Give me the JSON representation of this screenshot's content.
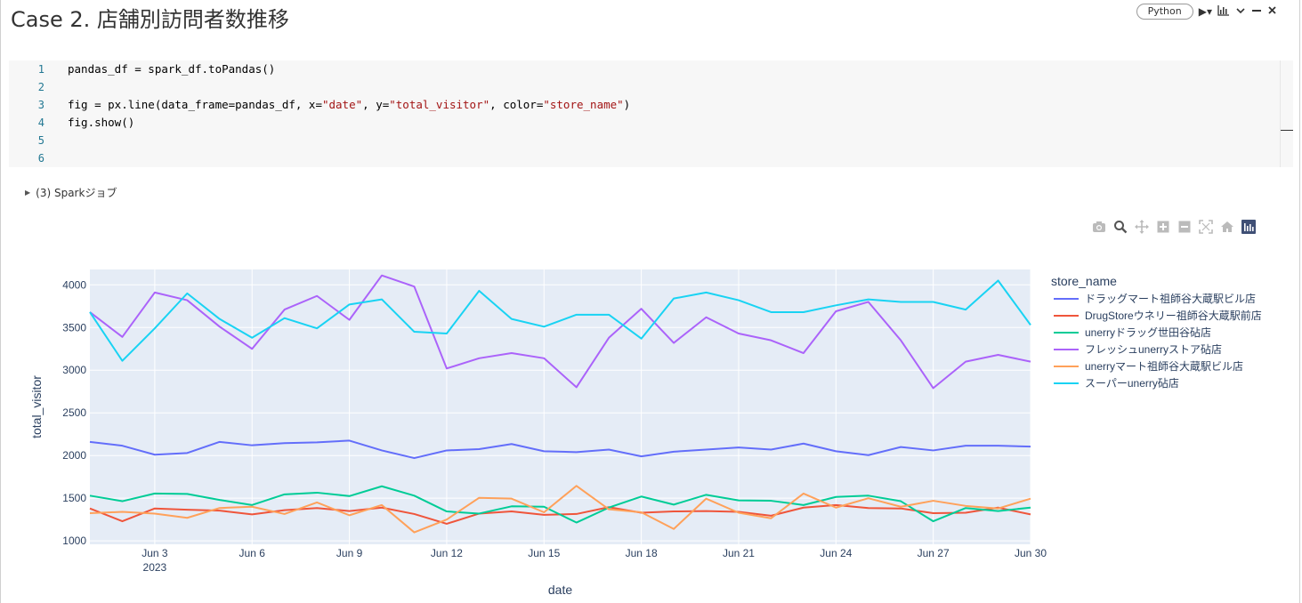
{
  "cell": {
    "title": "Case 2. 店舗別訪問者数推移",
    "language": "Python"
  },
  "code": {
    "line_numbers": [
      "1",
      "2",
      "3",
      "4",
      "5",
      "6"
    ],
    "line1": "pandas_df = spark_df.toPandas()",
    "line3_a": "fig = px.line(data_frame=pandas_df, x=",
    "line3_s1": "\"date\"",
    "line3_b": ", y=",
    "line3_s2": "\"total_visitor\"",
    "line3_c": ", color=",
    "line3_s3": "\"store_name\"",
    "line3_d": ")",
    "line4": "fig.show()"
  },
  "output": {
    "jobs_label": "(3) Sparkジョブ"
  },
  "icons": {
    "camera": "camera-icon",
    "zoom": "zoom-icon",
    "pan": "pan-icon",
    "zoom_in": "zoom-in-icon",
    "zoom_out": "zoom-out-icon",
    "autoscale": "autoscale-icon",
    "reset": "home-icon",
    "plotly": "plotly-logo-icon"
  },
  "chart_data": {
    "type": "line",
    "title": "",
    "xlabel": "date",
    "ylabel": "total_visitor",
    "legend_title": "store_name",
    "ylim": [
      960,
      4180
    ],
    "yticks": [
      1000,
      1500,
      2000,
      2500,
      3000,
      3500,
      4000
    ],
    "ytick_labels": [
      "1000",
      "1500",
      "2000",
      "2500",
      "3000",
      "3500",
      "4000"
    ],
    "x_start_day": 1,
    "x_end_day": 30,
    "xticks": [
      3,
      6,
      9,
      12,
      15,
      18,
      21,
      24,
      27,
      30
    ],
    "xtick_labels": [
      "Jun 3",
      "Jun 6",
      "Jun 9",
      "Jun 12",
      "Jun 15",
      "Jun 18",
      "Jun 21",
      "Jun 24",
      "Jun 27",
      "Jun 30"
    ],
    "x_year_label": "2023",
    "x": [
      1,
      2,
      3,
      4,
      5,
      6,
      7,
      8,
      9,
      10,
      11,
      12,
      13,
      14,
      15,
      16,
      17,
      18,
      19,
      20,
      21,
      22,
      23,
      24,
      25,
      26,
      27,
      28,
      29,
      30
    ],
    "series": [
      {
        "name": "ドラッグマート祖師谷大蔵駅ビル店",
        "color": "#636efa",
        "values": [
          2160,
          2115,
          2010,
          2030,
          2160,
          2120,
          2145,
          2155,
          2175,
          2060,
          1970,
          2060,
          2075,
          2135,
          2050,
          2040,
          2070,
          1990,
          2045,
          2070,
          2095,
          2070,
          2140,
          2050,
          2005,
          2100,
          2060,
          2115,
          2115,
          2105
        ]
      },
      {
        "name": "DrugStoreウネリー祖師谷大蔵駅前店",
        "color": "#ef553b",
        "values": [
          1380,
          1230,
          1380,
          1365,
          1355,
          1310,
          1360,
          1385,
          1350,
          1390,
          1315,
          1200,
          1320,
          1345,
          1305,
          1315,
          1395,
          1330,
          1345,
          1350,
          1340,
          1295,
          1390,
          1420,
          1385,
          1380,
          1325,
          1330,
          1390,
          1310
        ]
      },
      {
        "name": "unerryドラッグ世田谷砧店",
        "color": "#00cc96",
        "values": [
          1530,
          1465,
          1555,
          1550,
          1480,
          1420,
          1545,
          1565,
          1525,
          1640,
          1530,
          1345,
          1320,
          1405,
          1400,
          1215,
          1390,
          1520,
          1425,
          1540,
          1475,
          1470,
          1420,
          1515,
          1530,
          1465,
          1230,
          1385,
          1350,
          1390
        ]
      },
      {
        "name": "フレッシュunerryストア砧店",
        "color": "#ab63fa",
        "values": [
          3680,
          3390,
          3910,
          3820,
          3510,
          3250,
          3710,
          3870,
          3590,
          4110,
          3980,
          3020,
          3140,
          3200,
          3140,
          2800,
          3380,
          3720,
          3320,
          3620,
          3430,
          3350,
          3200,
          3690,
          3800,
          3350,
          2790,
          3100,
          3180,
          3100
        ]
      },
      {
        "name": "unerryマート祖師谷大蔵駅ビル店",
        "color": "#ffa15a",
        "values": [
          1325,
          1340,
          1320,
          1270,
          1385,
          1400,
          1315,
          1450,
          1300,
          1420,
          1100,
          1250,
          1505,
          1495,
          1335,
          1645,
          1370,
          1335,
          1140,
          1495,
          1330,
          1265,
          1555,
          1390,
          1500,
          1400,
          1470,
          1410,
          1380,
          1495
        ]
      },
      {
        "name": "スーパーunerry砧店",
        "color": "#19d3f3",
        "values": [
          3680,
          3110,
          3490,
          3900,
          3600,
          3380,
          3610,
          3490,
          3770,
          3830,
          3450,
          3430,
          3930,
          3600,
          3510,
          3650,
          3650,
          3370,
          3840,
          3910,
          3820,
          3680,
          3680,
          3760,
          3830,
          3800,
          3800,
          3710,
          4050,
          3530
        ]
      }
    ]
  }
}
